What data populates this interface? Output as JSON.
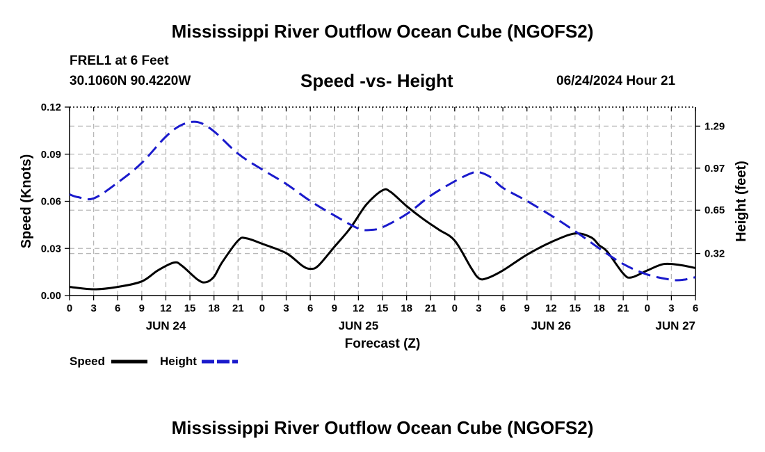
{
  "header": {
    "title": "Mississippi River Outflow Ocean Cube (NGOFS2)",
    "station_name": "FREL1 at 6 Feet",
    "station_coords": "30.1060N  90.4220W",
    "forecast_time": "06/24/2024 Hour 21"
  },
  "footer": {
    "title": "Mississippi River Outflow Ocean Cube (NGOFS2)"
  },
  "chart_data": {
    "type": "line",
    "title": "Speed -vs- Height",
    "xlabel": "Forecast (Z)",
    "ylabel": "Speed (Knots)",
    "y2label": "Height (feet)",
    "x_unit": "hours since JUN 24 00Z",
    "xlim": [
      0,
      78
    ],
    "ylim": [
      0,
      0.12
    ],
    "y2lim": [
      0.0,
      1.435
    ],
    "x_ticks": [
      0,
      3,
      6,
      9,
      12,
      15,
      18,
      21,
      24,
      27,
      30,
      33,
      36,
      39,
      42,
      45,
      48,
      51,
      54,
      57,
      60,
      63,
      66,
      69,
      72,
      75,
      78
    ],
    "x_tick_labels": [
      "0",
      "3",
      "6",
      "9",
      "12",
      "15",
      "18",
      "21",
      "0",
      "3",
      "6",
      "9",
      "12",
      "15",
      "18",
      "21",
      "0",
      "3",
      "6",
      "9",
      "12",
      "15",
      "18",
      "21",
      "0",
      "3",
      "6"
    ],
    "day_labels": [
      {
        "x": 12,
        "label": "JUN 24"
      },
      {
        "x": 36,
        "label": "JUN 25"
      },
      {
        "x": 60,
        "label": "JUN 26"
      },
      {
        "x": 78,
        "label": "JUN 27"
      }
    ],
    "y_ticks": [
      0.0,
      0.03,
      0.06,
      0.09,
      0.12
    ],
    "y_tick_labels": [
      "0.00",
      "0.03",
      "0.06",
      "0.09",
      "0.12"
    ],
    "y2_ticks": [
      0.32,
      0.65,
      0.97,
      1.29
    ],
    "y2_tick_labels": [
      "0.32",
      "0.65",
      "0.97",
      "1.29"
    ],
    "grid": true,
    "legend_position": "bottom-left",
    "series": [
      {
        "name": "Speed",
        "axis": "left",
        "color": "#000000",
        "dash": "solid",
        "x": [
          0,
          3,
          6,
          9,
          11,
          13,
          14,
          16,
          17,
          18,
          19,
          21,
          22,
          24,
          27,
          29,
          30,
          31,
          33,
          35,
          37,
          39,
          40,
          42,
          44,
          46,
          48,
          50,
          51,
          52,
          54,
          57,
          60,
          63,
          65,
          66,
          67,
          69,
          70,
          72,
          74,
          76,
          78
        ],
        "values": [
          0.0055,
          0.004,
          0.0055,
          0.009,
          0.016,
          0.021,
          0.019,
          0.01,
          0.0085,
          0.012,
          0.021,
          0.035,
          0.0365,
          0.033,
          0.027,
          0.019,
          0.017,
          0.019,
          0.031,
          0.043,
          0.058,
          0.067,
          0.066,
          0.057,
          0.049,
          0.042,
          0.035,
          0.018,
          0.011,
          0.011,
          0.016,
          0.026,
          0.034,
          0.0395,
          0.037,
          0.032,
          0.028,
          0.014,
          0.0115,
          0.016,
          0.02,
          0.0195,
          0.0175
        ]
      },
      {
        "name": "Height",
        "axis": "right",
        "color": "#1a1acc",
        "dash": "dashed",
        "x": [
          0,
          1,
          3,
          6,
          9,
          12,
          14,
          16,
          18,
          21,
          24,
          27,
          30,
          33,
          36,
          37.5,
          39,
          42,
          45,
          48,
          50,
          51,
          52.5,
          54,
          57,
          60,
          63,
          66,
          69,
          72,
          75,
          76.5,
          78
        ],
        "values": [
          0.77,
          0.75,
          0.74,
          0.86,
          1.01,
          1.21,
          1.3,
          1.32,
          1.25,
          1.08,
          0.96,
          0.85,
          0.72,
          0.61,
          0.51,
          0.5,
          0.52,
          0.62,
          0.76,
          0.87,
          0.93,
          0.94,
          0.9,
          0.82,
          0.72,
          0.61,
          0.49,
          0.36,
          0.24,
          0.16,
          0.12,
          0.12,
          0.14
        ]
      }
    ]
  }
}
